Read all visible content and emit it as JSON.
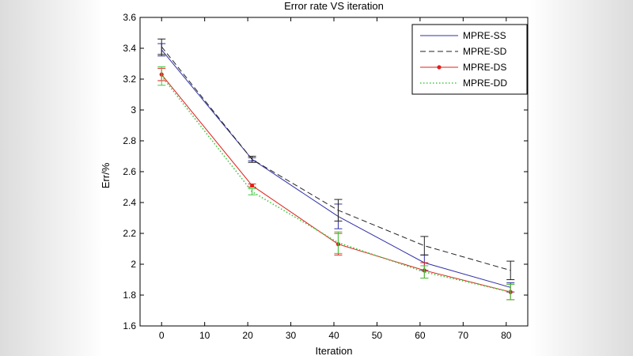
{
  "chart_data": {
    "type": "line",
    "title": "Error rate VS iteration",
    "xlabel": "Iteration",
    "ylabel": "Err/%",
    "xlim": [
      -5,
      85
    ],
    "ylim": [
      1.6,
      3.6
    ],
    "xticks": [
      0,
      10,
      20,
      30,
      40,
      50,
      60,
      70,
      80
    ],
    "yticks": [
      1.6,
      1.8,
      2.0,
      2.2,
      2.4,
      2.6,
      2.8,
      3.0,
      3.2,
      3.4,
      3.6
    ],
    "xtick_labels": [
      "0",
      "10",
      "20",
      "30",
      "40",
      "50",
      "60",
      "70",
      "80"
    ],
    "ytick_labels": [
      "1.6",
      "1.8",
      "2",
      "2.2",
      "2.4",
      "2.6",
      "2.8",
      "3",
      "3.2",
      "3.4",
      "3.6"
    ],
    "legend_position": "top-right",
    "series": [
      {
        "name": "MPRE-SS",
        "color": "#2f2fa8",
        "style": "solid",
        "marker": "none",
        "x": [
          0,
          21,
          41,
          61,
          81
        ],
        "y": [
          3.39,
          2.68,
          2.31,
          2.01,
          1.85
        ],
        "err": [
          0.04,
          0.01,
          0.08,
          0.05,
          0.03
        ]
      },
      {
        "name": "MPRE-SD",
        "color": "#222222",
        "style": "dashed",
        "marker": "none",
        "x": [
          0,
          21,
          41,
          61,
          81
        ],
        "y": [
          3.41,
          2.68,
          2.35,
          2.12,
          1.96
        ],
        "err": [
          0.05,
          0.02,
          0.07,
          0.06,
          0.06
        ]
      },
      {
        "name": "MPRE-DS",
        "color": "#e0201b",
        "style": "solid",
        "marker": "dot",
        "x": [
          0,
          21,
          41,
          61,
          81
        ],
        "y": [
          3.23,
          2.51,
          2.13,
          1.96,
          1.82
        ],
        "err": [
          0.04,
          0.01,
          0.07,
          0.05,
          0.05
        ]
      },
      {
        "name": "MPRE-DD",
        "color": "#3ec93e",
        "style": "dotted",
        "marker": "none",
        "x": [
          0,
          21,
          41,
          61,
          81
        ],
        "y": [
          3.22,
          2.47,
          2.14,
          1.95,
          1.82
        ],
        "err": [
          0.06,
          0.02,
          0.07,
          0.04,
          0.05
        ]
      }
    ]
  }
}
